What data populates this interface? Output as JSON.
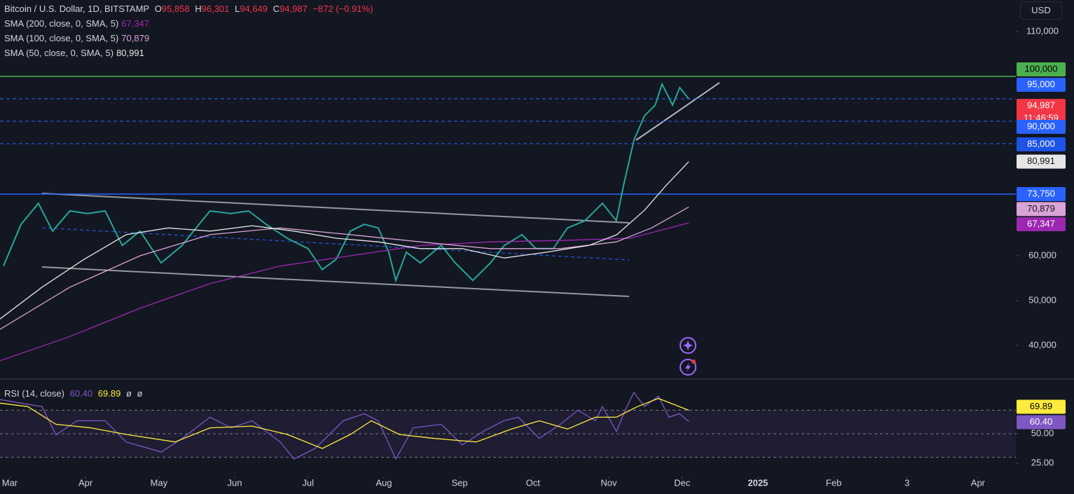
{
  "header": {
    "ohlc": [
      {
        "key": "O",
        "text": "95,858"
      },
      {
        "key": "H",
        "text": "96,301"
      },
      {
        "key": "L",
        "text": "94,649"
      },
      {
        "key": "C",
        "text": "94,987"
      }
    ],
    "change": "−872 (−0.91%)",
    "currency": "USD"
  },
  "chart_data": [
    {
      "type": "line",
      "xlim": [
        -4,
        411.5
      ],
      "xticks": [
        {
          "value": 0,
          "label": "Mar"
        },
        {
          "value": 31,
          "label": "Apr"
        },
        {
          "value": 61,
          "label": "May"
        },
        {
          "value": 92,
          "label": "Jun"
        },
        {
          "value": 122,
          "label": "Jul"
        },
        {
          "value": 153,
          "label": "Aug"
        },
        {
          "value": 184,
          "label": "Sep"
        },
        {
          "value": 214,
          "label": "Oct"
        },
        {
          "value": 245,
          "label": "Nov"
        },
        {
          "value": 275,
          "label": "Dec"
        },
        {
          "value": 306,
          "label": "2025"
        },
        {
          "value": 337,
          "label": "Feb"
        },
        {
          "value": 367,
          "label": "3"
        },
        {
          "value": 396,
          "label": "Apr"
        }
      ],
      "ylim": [
        32656,
        117031
      ],
      "yticks": [
        {
          "value": 40000,
          "label": "40,000"
        },
        {
          "value": 50000,
          "label": "50,000"
        },
        {
          "value": 60000,
          "label": "60,000"
        },
        {
          "value": 110000,
          "label": "110,000"
        }
      ],
      "series": [
        {
          "name": "Bitcoin / U.S. Dollar, 1D, BITSTAMP",
          "color": "#26a69a",
          "x": [
            -2.6,
            4.6,
            11.7,
            17.5,
            24.6,
            31.8,
            39,
            46,
            53.3,
            61.9,
            70.5,
            76.2,
            81.9,
            90.5,
            97.7,
            104.9,
            113.5,
            122,
            127.8,
            133.5,
            139.3,
            145,
            150.7,
            155,
            157.9,
            162.2,
            167.9,
            176.5,
            182.2,
            189.4,
            196.6,
            202.3,
            209.5,
            215.2,
            222.3,
            228.1,
            235.2,
            242.4,
            248.1,
            251,
            255.3,
            259.6,
            264,
            266.8,
            271.1,
            274,
            277.7
          ],
          "values": [
            57700,
            67000,
            71700,
            65500,
            70000,
            69400,
            70000,
            62300,
            65500,
            58400,
            62300,
            66200,
            70000,
            69400,
            70000,
            67000,
            63900,
            61600,
            56900,
            59200,
            65500,
            67000,
            66200,
            60800,
            54500,
            60800,
            58400,
            62300,
            58400,
            54500,
            58400,
            62300,
            64700,
            61600,
            61600,
            66200,
            67800,
            71700,
            67800,
            75600,
            85800,
            91200,
            93600,
            98300,
            93600,
            97500,
            94987
          ]
        },
        {
          "name": "SMA (200, close, 0, SMA, 5)",
          "color": "#9c27b0",
          "legend_value": "67,347",
          "x": [
            -4,
            24.6,
            53.3,
            81.9,
            110.6,
            139.3,
            167.9,
            196.6,
            225.2,
            253.9,
            277.7
          ],
          "values": [
            36600,
            42000,
            48300,
            53800,
            57700,
            60000,
            62300,
            63100,
            63400,
            63900,
            67347
          ]
        },
        {
          "name": "SMA (100, close, 0, SMA, 5)",
          "color": "#d9a3d6",
          "legend_value": "70,879",
          "x": [
            -4,
            24.6,
            53.3,
            81.9,
            110.6,
            139.3,
            167.9,
            196.6,
            225.2,
            248.1,
            262.5,
            277.7
          ],
          "values": [
            43600,
            53000,
            60000,
            64700,
            66200,
            64700,
            63100,
            61600,
            61600,
            63100,
            66200,
            70879
          ]
        },
        {
          "name": "SMA (50, close, 0, SMA, 5)",
          "color": "#e6e6e6",
          "legend_value": "80,991",
          "x": [
            -4,
            13.2,
            30.4,
            47.6,
            64.8,
            82,
            99.1,
            116.3,
            133.5,
            150.7,
            167.9,
            185.1,
            202.3,
            219.6,
            236.8,
            248.3,
            259.7,
            268.3,
            277.7
          ],
          "values": [
            45900,
            53000,
            59200,
            64700,
            66200,
            65500,
            66700,
            65500,
            63900,
            63100,
            61600,
            61600,
            59500,
            60800,
            62300,
            64700,
            70200,
            75600,
            80991
          ]
        }
      ],
      "levels": [
        {
          "value": 100000,
          "color": "#4caf50",
          "style": "solid"
        },
        {
          "value": 95000,
          "color": "#2962ff",
          "style": "dashed"
        },
        {
          "value": 90000,
          "color": "#2962ff",
          "style": "dashed"
        },
        {
          "value": 85000,
          "color": "#2962ff",
          "style": "dashed"
        },
        {
          "value": 73750,
          "color": "#2962ff",
          "style": "solid"
        }
      ],
      "badges": [
        {
          "value": 100000,
          "label": "100,000",
          "color": "#4caf50",
          "text_color": "#000000"
        },
        {
          "value": 95000,
          "label": "95,000",
          "color": "#2962ff",
          "text_color": "#ffffff"
        },
        {
          "value": 94987,
          "label": "94,987",
          "sublabel": "11:46:59",
          "color": "#f23645",
          "text_color": "#ffffff"
        },
        {
          "value": 90000,
          "label": "90,000",
          "color": "#2962ff",
          "text_color": "#ffffff"
        },
        {
          "value": 85000,
          "label": "85,000",
          "color": "#1e53e5",
          "text_color": "#ffffff"
        },
        {
          "value": 80991,
          "label": "80,991",
          "color": "#e6e6e6",
          "text_color": "#131722"
        },
        {
          "value": 73750,
          "label": "73,750",
          "color": "#2962ff",
          "text_color": "#ffffff"
        },
        {
          "value": 70879,
          "label": "70,879",
          "color": "#d9a3d6",
          "text_color": "#131722"
        },
        {
          "value": 67347,
          "label": "67,347",
          "color": "#9c27b0",
          "text_color": "#ffffff"
        }
      ]
    },
    {
      "type": "line",
      "title": "RSI (14, close)",
      "empty_values": [
        "ø",
        "ø"
      ],
      "xlim": [
        -4,
        411.5
      ],
      "ylim": [
        13.7,
        95.2
      ],
      "yticks": [
        {
          "value": 50,
          "label": "50.00"
        },
        {
          "value": 25,
          "label": "25.00"
        }
      ],
      "bands": [
        70,
        50,
        30
      ],
      "series": [
        {
          "color": "#7e57c2",
          "legend_value": "60.40",
          "x": [
            -4,
            4.6,
            13.2,
            18.9,
            27.5,
            39,
            47.6,
            61.9,
            70.5,
            81.9,
            90.5,
            99.1,
            110.6,
            116.3,
            124.9,
            136.4,
            145,
            150.7,
            157.9,
            165,
            176.5,
            185.1,
            193.7,
            202,
            208,
            216.6,
            225.2,
            232.4,
            239.5,
            242.4,
            248.1,
            252.4,
            255.3,
            259.6,
            265.3,
            269.6,
            273.9,
            277.7
          ],
          "values": [
            79,
            76,
            73,
            49,
            61,
            61,
            43,
            34.5,
            46,
            64,
            55,
            61,
            43,
            28.6,
            37.5,
            61,
            67,
            61,
            28.6,
            55,
            58,
            40.5,
            52,
            61,
            64,
            46,
            58,
            70,
            61,
            73,
            52,
            73,
            85,
            73,
            82,
            64,
            67,
            60.4
          ]
        },
        {
          "color": "#ffeb3b",
          "legend_value": "69.89",
          "x": [
            -4,
            7.4,
            18.9,
            33.2,
            47.6,
            67.6,
            81.9,
            99.1,
            113.5,
            127.8,
            139.3,
            147.9,
            159.3,
            173.6,
            190.8,
            205.2,
            216.6,
            228.1,
            239.5,
            248.1,
            256.7,
            265.3,
            277.7
          ],
          "values": [
            76,
            73,
            58,
            55,
            49.4,
            43,
            55,
            56.5,
            49.4,
            37.5,
            49.4,
            61,
            49.4,
            46,
            43,
            54,
            61,
            54,
            64,
            64,
            73,
            80,
            69.89
          ]
        }
      ],
      "badges": [
        {
          "value": 69.89,
          "label": "69.89",
          "color": "#ffeb3b",
          "text_color": "#000000"
        },
        {
          "value": 60.4,
          "label": "60.40",
          "color": "#7e57c2",
          "text_color": "#ffffff"
        }
      ]
    }
  ]
}
